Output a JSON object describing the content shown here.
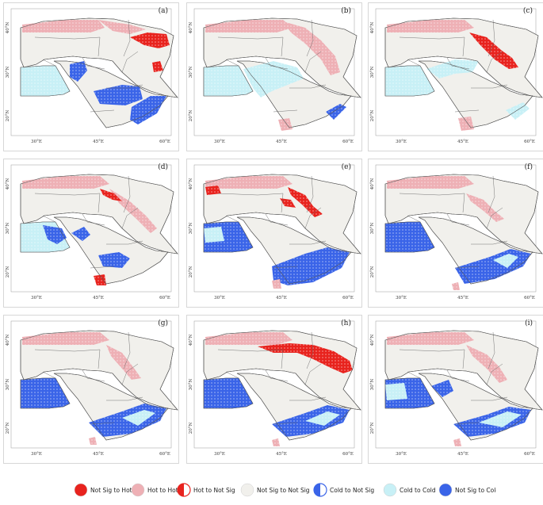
{
  "panels": [
    {
      "label": "(a)",
      "lats": [
        "40°N",
        "30°N",
        "20°N"
      ],
      "lons": [
        "30°E",
        "45°E",
        "60°E"
      ],
      "regions": [
        {
          "class": "hot_to_hot",
          "desc": "Turkey and north-west Iran"
        },
        {
          "class": "not_sig_to_hot",
          "desc": "northern Iran"
        },
        {
          "class": "not_sig_to_cold",
          "desc": "Iraq, Rub' al Khali and southern Arabia"
        },
        {
          "class": "cold_to_cold",
          "desc": "Egypt"
        }
      ]
    },
    {
      "label": "(b)",
      "lats": [
        "40°N",
        "30°N",
        "20°N"
      ],
      "lons": [
        "30°E",
        "45°E",
        "60°E"
      ],
      "regions": [
        {
          "class": "hot_to_hot",
          "desc": "Turkey, the Zagros belt and Yemen"
        },
        {
          "class": "hot_to_not_sig",
          "desc": "Zagros belt"
        },
        {
          "class": "cold_to_not_sig",
          "desc": "Iraq and central Arabia"
        },
        {
          "class": "cold_to_cold",
          "desc": "Egypt"
        }
      ]
    },
    {
      "label": "(c)",
      "lats": [
        "40°N",
        "30°N",
        "20°N"
      ],
      "lons": [
        "30°E",
        "45°E",
        "60°E"
      ],
      "regions": [
        {
          "class": "hot_to_hot",
          "desc": "Turkey and Yemen"
        },
        {
          "class": "not_sig_to_hot",
          "desc": "Zagros belt"
        },
        {
          "class": "cold_to_not_sig",
          "desc": "northern Arabia and Oman"
        },
        {
          "class": "cold_to_cold",
          "desc": "Egypt"
        }
      ]
    },
    {
      "label": "(d)",
      "lats": [
        "40°N",
        "30°N",
        "20°N"
      ],
      "lons": [
        "30°E",
        "45°E",
        "60°E"
      ],
      "regions": [
        {
          "class": "hot_to_hot",
          "desc": "Turkey and the Zagros belt"
        },
        {
          "class": "hot_to_not_sig",
          "desc": "Zagros belt"
        },
        {
          "class": "not_sig_to_cold",
          "desc": "Sinai and central Arabia"
        },
        {
          "class": "not_sig_to_hot",
          "desc": "Yemen"
        },
        {
          "class": "cold_to_cold",
          "desc": "Egypt"
        }
      ]
    },
    {
      "label": "(e)",
      "lats": [
        "40°N",
        "30°N",
        "20°N"
      ],
      "lons": [
        "30°E",
        "45°E",
        "60°E"
      ],
      "regions": [
        {
          "class": "hot_to_hot",
          "desc": "Turkey and Iran"
        },
        {
          "class": "not_sig_to_hot",
          "desc": "Zagros belt and western Turkey"
        },
        {
          "class": "not_sig_to_cold",
          "desc": "southern Arabia"
        },
        {
          "class": "cold_to_not_sig",
          "desc": "Egypt"
        },
        {
          "class": "cold_to_cold",
          "desc": "Egypt"
        }
      ]
    },
    {
      "label": "(f)",
      "lats": [
        "40°N",
        "30°N",
        "20°N"
      ],
      "lons": [
        "30°E",
        "45°E",
        "60°E"
      ],
      "regions": [
        {
          "class": "hot_to_hot",
          "desc": "Turkey"
        },
        {
          "class": "hot_to_not_sig",
          "desc": "Zagros belt"
        },
        {
          "class": "cold_to_not_sig",
          "desc": "Egypt and southern Arabia"
        },
        {
          "class": "cold_to_cold",
          "desc": "southern Arabia"
        }
      ]
    },
    {
      "label": "(g)",
      "lats": [
        "40°N",
        "30°N",
        "20°N"
      ],
      "lons": [
        "30°E",
        "45°E",
        "60°E"
      ],
      "regions": [
        {
          "class": "hot_to_hot",
          "desc": "Turkey"
        },
        {
          "class": "hot_to_not_sig",
          "desc": "Zagros belt"
        },
        {
          "class": "cold_to_not_sig",
          "desc": "Egypt and southern Arabia"
        },
        {
          "class": "cold_to_cold",
          "desc": "southern Arabia"
        }
      ]
    },
    {
      "label": "(h)",
      "lats": [
        "40°N",
        "30°N",
        "20°N"
      ],
      "lons": [
        "30°E",
        "45°E",
        "60°E"
      ],
      "regions": [
        {
          "class": "hot_to_hot",
          "desc": "Turkey"
        },
        {
          "class": "not_sig_to_hot",
          "desc": "Iran"
        },
        {
          "class": "not_sig_to_cold",
          "desc": "Egypt and southern Arabia"
        },
        {
          "class": "cold_to_cold",
          "desc": "Yemen"
        }
      ]
    },
    {
      "label": "(i)",
      "lats": [
        "40°N",
        "30°N",
        "20°N"
      ],
      "lons": [
        "30°E",
        "45°E",
        "60°E"
      ],
      "regions": [
        {
          "class": "hot_to_hot",
          "desc": "Turkey"
        },
        {
          "class": "hot_to_not_sig",
          "desc": "Zagros belt"
        },
        {
          "class": "not_sig_to_cold",
          "desc": "Egypt and Iraq"
        },
        {
          "class": "cold_to_not_sig",
          "desc": "southern Arabia"
        },
        {
          "class": "cold_to_cold",
          "desc": "southern Arabia"
        }
      ]
    }
  ],
  "legend": [
    {
      "id": "not_sig_to_hot",
      "label": "Not Sig to Hot",
      "color": "#e8231e",
      "style": "solid"
    },
    {
      "id": "hot_to_hot",
      "label": "Hot to Hot",
      "color": "#eeb0b5",
      "style": "solid"
    },
    {
      "id": "hot_to_not_sig",
      "label": "Hot to Not Sig",
      "color": "#e8231e",
      "style": "half"
    },
    {
      "id": "not_sig_to_not_sig",
      "label": "Not Sig to Not Sig",
      "color": "#f1f0ec",
      "style": "solid"
    },
    {
      "id": "cold_to_not_sig",
      "label": "Cold to Not Sig",
      "color": "#3a64e8",
      "style": "half"
    },
    {
      "id": "cold_to_cold",
      "label": "Cold to Cold",
      "color": "#c8f0f6",
      "style": "solid"
    },
    {
      "id": "not_sig_to_cold",
      "label": "Not Sig to Cold",
      "color": "#3a64e8",
      "style": "solid"
    }
  ],
  "colors": {
    "land": "#f1f0ec",
    "outline": "#555555",
    "hot_to_hot": "#eeb0b5",
    "not_sig_to_hot": "#e8231e",
    "cold_to_cold": "#c8f0f6",
    "not_sig_to_cold": "#3a64e8"
  }
}
